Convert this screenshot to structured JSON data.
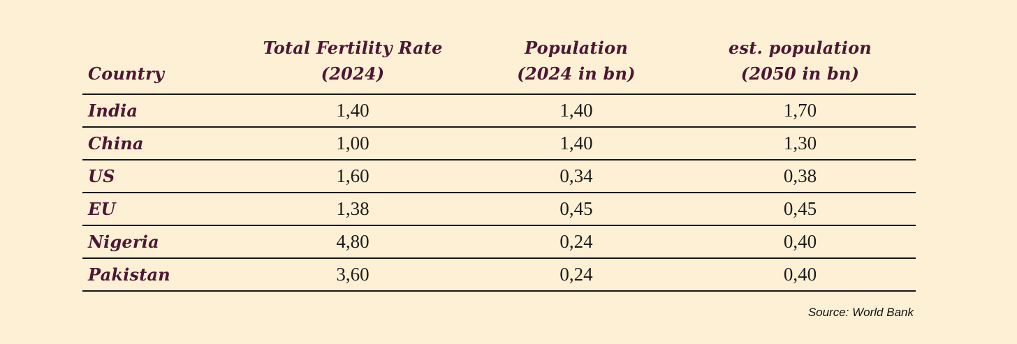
{
  "colors": {
    "background": "#fdf0d5",
    "heading_text": "#4d1733",
    "body_text": "#1b1b1b",
    "rule_line": "#161616"
  },
  "source_note": "Source: World Bank",
  "table": {
    "headers": [
      {
        "line1": "Country",
        "line2": ""
      },
      {
        "line1": "Total Fertility Rate",
        "line2": "(2024)"
      },
      {
        "line1": "Population",
        "line2": "(2024 in bn)"
      },
      {
        "line1": "est. population",
        "line2": "(2050 in bn)"
      }
    ],
    "rows": [
      {
        "country": "India",
        "tfr": "1,40",
        "pop2024": "1,40",
        "pop2050": "1,70"
      },
      {
        "country": "China",
        "tfr": "1,00",
        "pop2024": "1,40",
        "pop2050": "1,30"
      },
      {
        "country": "US",
        "tfr": "1,60",
        "pop2024": "0,34",
        "pop2050": "0,38"
      },
      {
        "country": "EU",
        "tfr": "1,38",
        "pop2024": "0,45",
        "pop2050": "0,45"
      },
      {
        "country": "Nigeria",
        "tfr": "4,80",
        "pop2024": "0,24",
        "pop2050": "0,40"
      },
      {
        "country": "Pakistan",
        "tfr": "3,60",
        "pop2024": "0,24",
        "pop2050": "0,40"
      }
    ]
  },
  "chart_data": {
    "type": "table",
    "title": "",
    "columns": [
      "Country",
      "Total Fertility Rate (2024)",
      "Population (2024 in bn)",
      "est. population (2050 in bn)"
    ],
    "rows": [
      [
        "India",
        1.4,
        1.4,
        1.7
      ],
      [
        "China",
        1.0,
        1.4,
        1.3
      ],
      [
        "US",
        1.6,
        0.34,
        0.38
      ],
      [
        "EU",
        1.38,
        0.45,
        0.45
      ],
      [
        "Nigeria",
        4.8,
        0.24,
        0.4
      ],
      [
        "Pakistan",
        3.6,
        0.24,
        0.4
      ]
    ],
    "decimal_separator": ",",
    "source": "Source: World Bank"
  }
}
